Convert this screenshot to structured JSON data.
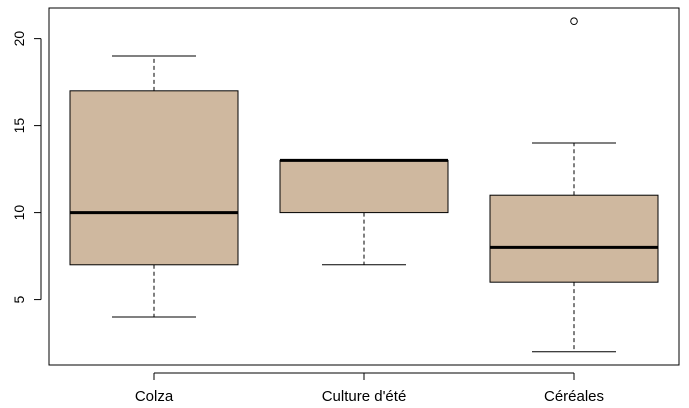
{
  "chart_data": {
    "type": "boxplot",
    "title": "",
    "xlabel": "",
    "ylabel": "",
    "categories": [
      "Colza",
      "Culture d'été",
      "Céréales"
    ],
    "boxes": [
      {
        "category": "Colza",
        "whisker_low": 4,
        "q1": 7,
        "median": 10,
        "q3": 17,
        "whisker_high": 19,
        "outliers": []
      },
      {
        "category": "Culture d'été",
        "whisker_low": 7,
        "q1": 10,
        "median": 13,
        "q3": 13,
        "whisker_high": 13,
        "outliers": []
      },
      {
        "category": "Céréales",
        "whisker_low": 2,
        "q1": 6,
        "median": 8,
        "q3": 11,
        "whisker_high": 14,
        "outliers": [
          21
        ]
      }
    ],
    "y_ticks": [
      5,
      10,
      15,
      20
    ],
    "ylim": [
      1.24,
      21.76
    ],
    "box_color": "#cfb89f",
    "grid": false,
    "legend": "none"
  }
}
